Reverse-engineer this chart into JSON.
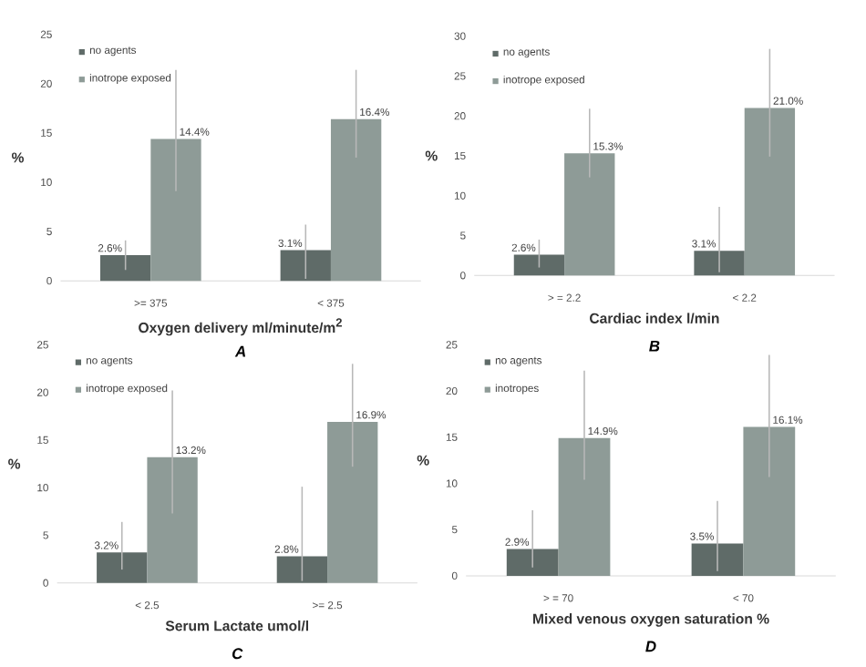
{
  "chart_data": [
    {
      "type": "bar",
      "categories": [
        ">= 375",
        "< 375"
      ],
      "xlabel": "Oxygen delivery ml/minute/m$^{2}$",
      "ylabel": "%",
      "annotations": [
        "A"
      ],
      "ylim": [
        0,
        25
      ],
      "yticks": [
        0,
        5,
        10,
        15,
        20,
        25
      ],
      "legend": "top left",
      "grid": false,
      "series": [
        {
          "name": "no agents",
          "color": "#5f6b68",
          "values": [
            2.6,
            3.1
          ],
          "errors": [
            [
              1.1,
              4.1
            ],
            [
              0.2,
              5.7
            ]
          ],
          "value_labels": [
            "2.6%",
            "3.1%"
          ]
        },
        {
          "name": "inotrope exposed",
          "color": "#8e9b97",
          "values": [
            14.4,
            16.4
          ],
          "errors": [
            [
              9.1,
              21.4
            ],
            [
              12.5,
              21.4
            ]
          ],
          "value_labels": [
            "14.4%",
            "16.4%"
          ]
        }
      ]
    },
    {
      "type": "bar",
      "categories": [
        "> = 2.2",
        "< 2.2"
      ],
      "xlabel": "Cardiac index l/min",
      "ylabel": "%",
      "annotations": [
        "B"
      ],
      "ylim": [
        0,
        30
      ],
      "yticks": [
        0,
        5,
        10,
        15,
        20,
        25,
        30
      ],
      "legend": "top left",
      "grid": false,
      "series": [
        {
          "name": "no agents",
          "color": "#5f6b68",
          "values": [
            2.6,
            3.1
          ],
          "errors": [
            [
              1.0,
              4.5
            ],
            [
              0.4,
              8.6
            ]
          ],
          "value_labels": [
            "2.6%",
            "3.1%"
          ]
        },
        {
          "name": "inotrope exposed",
          "color": "#8e9b97",
          "values": [
            15.3,
            21.0
          ],
          "errors": [
            [
              12.3,
              20.9
            ],
            [
              14.9,
              28.4
            ]
          ],
          "value_labels": [
            "15.3%",
            "21.0%"
          ]
        }
      ]
    },
    {
      "type": "bar",
      "categories": [
        "< 2.5",
        ">= 2.5"
      ],
      "xlabel": "Serum Lactate umol/l",
      "ylabel": "%",
      "annotations": [
        "C"
      ],
      "ylim": [
        0,
        25
      ],
      "yticks": [
        0,
        5,
        10,
        15,
        20,
        25
      ],
      "legend": "top left",
      "grid": false,
      "series": [
        {
          "name": "no agents",
          "color": "#5f6b68",
          "values": [
            3.2,
            2.8
          ],
          "errors": [
            [
              1.4,
              6.4
            ],
            [
              0.2,
              10.1
            ]
          ],
          "value_labels": [
            "3.2%",
            "2.8%"
          ]
        },
        {
          "name": "inotrope exposed",
          "color": "#8e9b97",
          "values": [
            13.2,
            16.9
          ],
          "errors": [
            [
              7.3,
              20.2
            ],
            [
              12.2,
              23.0
            ]
          ],
          "value_labels": [
            "13.2%",
            "16.9%"
          ]
        }
      ]
    },
    {
      "type": "bar",
      "categories": [
        "> = 70",
        "< 70"
      ],
      "xlabel": "Mixed venous oxygen saturation %",
      "ylabel": "%",
      "annotations": [
        "D"
      ],
      "ylim": [
        0,
        25
      ],
      "yticks": [
        0,
        5,
        10,
        15,
        20,
        25
      ],
      "legend": "top left",
      "grid": false,
      "series": [
        {
          "name": "no agents",
          "color": "#5f6b68",
          "values": [
            2.9,
            3.5
          ],
          "errors": [
            [
              0.9,
              7.1
            ],
            [
              0.5,
              8.1
            ]
          ],
          "value_labels": [
            "2.9%",
            "3.5%"
          ]
        },
        {
          "name": "inotropes",
          "color": "#8e9b97",
          "values": [
            14.9,
            16.1
          ],
          "errors": [
            [
              10.4,
              22.2
            ],
            [
              10.7,
              23.9
            ]
          ],
          "value_labels": [
            "14.9%",
            "16.1%"
          ]
        }
      ]
    }
  ]
}
